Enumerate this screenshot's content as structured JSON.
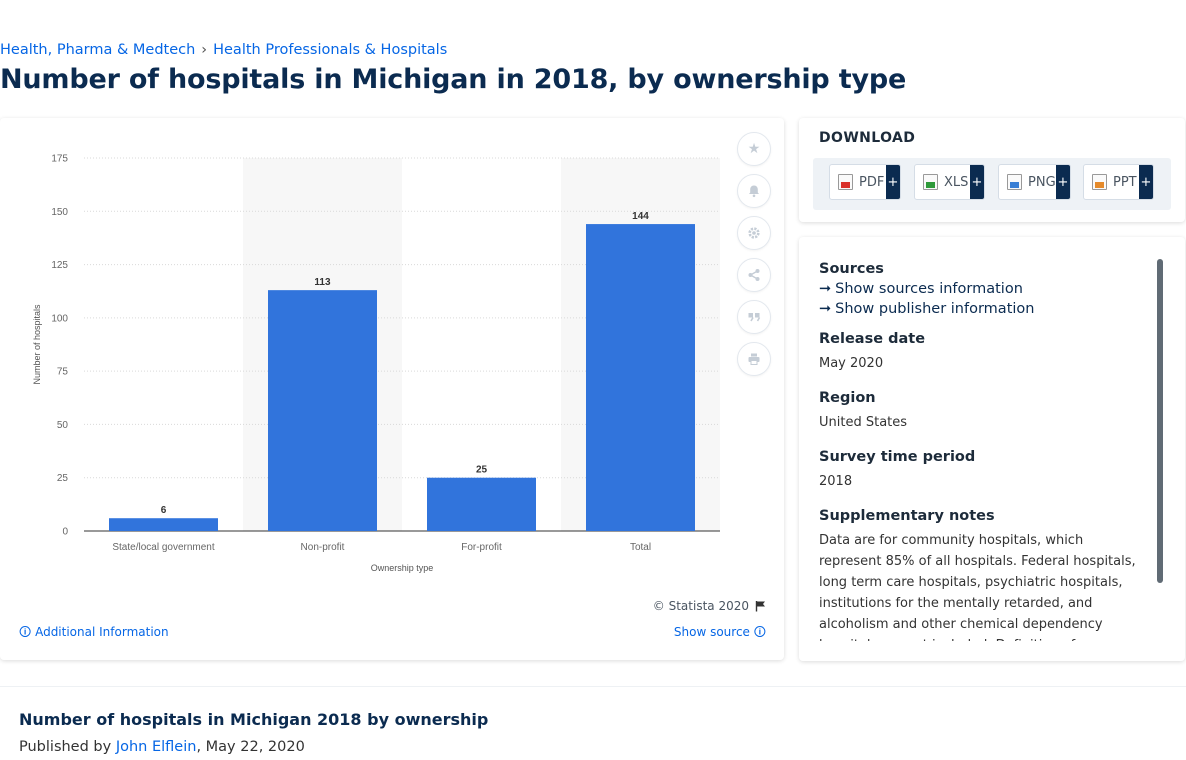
{
  "breadcrumb": [
    "Health, Pharma & Medtech",
    "Health Professionals & Hospitals"
  ],
  "page_title": "Number of hospitals in Michigan in 2018, by ownership type",
  "chart_data": {
    "type": "bar",
    "title": "",
    "categories": [
      "State/local government",
      "Non-profit",
      "For-profit",
      "Total"
    ],
    "values": [
      6,
      113,
      25,
      144
    ],
    "xlabel": "Ownership type",
    "ylabel": "Number of hospitals",
    "ylim": [
      0,
      175
    ],
    "yticks": [
      0,
      25,
      50,
      75,
      100,
      125,
      150,
      175
    ],
    "grid": true,
    "bar_color": "#3174dc",
    "data_labels": true
  },
  "chart_footer": {
    "copyright": "© Statista 2020",
    "additional_info": "Additional Information",
    "show_source": "Show source"
  },
  "tools": [
    "star-icon",
    "bell-icon",
    "gear-icon",
    "share-icon",
    "quote-icon",
    "print-icon"
  ],
  "download": {
    "title": "DOWNLOAD",
    "formats": [
      "PDF",
      "XLS",
      "PNG",
      "PPT"
    ],
    "plus": "+"
  },
  "info": {
    "sources_h": "Sources",
    "show_sources": "Show sources information",
    "show_publisher": "Show publisher information",
    "release_h": "Release date",
    "release_v": "May 2020",
    "region_h": "Region",
    "region_v": "United States",
    "period_h": "Survey time period",
    "period_v": "2018",
    "notes_h": "Supplementary notes",
    "notes_v": "Data are for community hospitals, which represent 85% of all hospitals. Federal hospitals, long term care hospitals, psychiatric hospitals, institutions for the mentally retarded, and alcoholism and other chemical dependency hospitals are not included. Definition of community hospitals: All nonfederal"
  },
  "bottom": {
    "title": "Number of hospitals in Michigan 2018 by ownership",
    "published_by": "Published by",
    "author": "John Elflein",
    "date": ", May 22, 2020"
  }
}
